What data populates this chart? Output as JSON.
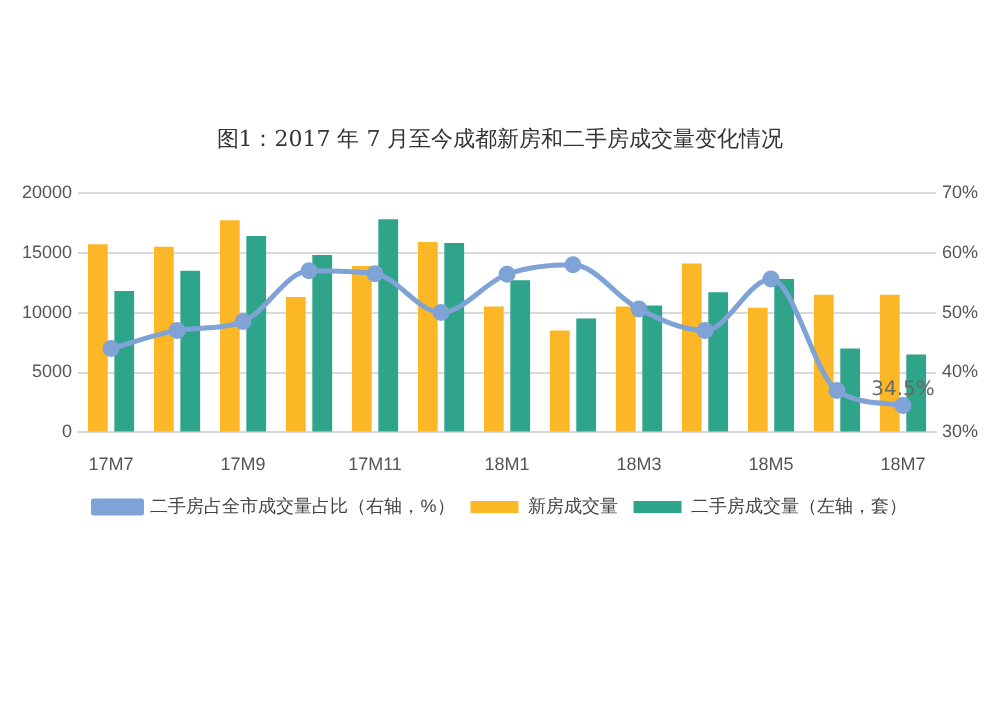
{
  "chart_data": {
    "type": "bar",
    "title": "图1：2017 年 7 月至今成都新房和二手房成交量变化情况",
    "categories": [
      "17M7",
      null,
      "17M9",
      null,
      "17M11",
      null,
      "18M1",
      null,
      "18M3",
      null,
      "18M5",
      null,
      "18M7"
    ],
    "series": [
      {
        "name": "新房成交量",
        "color": "#fbb726",
        "values": [
          15700,
          15500,
          17700,
          11300,
          13900,
          15900,
          10500,
          8500,
          10500,
          14100,
          10400,
          11500,
          11500
        ]
      },
      {
        "name": "二手房成交量（左轴，套）",
        "color": "#2ea58a",
        "values": [
          11800,
          13500,
          16400,
          14800,
          17800,
          15800,
          12700,
          9500,
          10600,
          11700,
          12800,
          7000,
          6500
        ]
      },
      {
        "name": "二手房占全市成交量占比（右轴，%）",
        "color": "#7fa3d6",
        "type": "line",
        "axis": "y2",
        "marker": "circle",
        "values": [
          44,
          47,
          48.5,
          57,
          56.5,
          50,
          56.4,
          58,
          50.6,
          47,
          55.6,
          37,
          34.5
        ],
        "value_labels": [
          null,
          null,
          null,
          null,
          null,
          null,
          null,
          null,
          null,
          null,
          null,
          null,
          "34.5%"
        ]
      }
    ],
    "ylim": [
      0,
      20000
    ],
    "yticks": [
      0,
      5000,
      10000,
      15000,
      20000
    ],
    "y2lim": [
      30,
      70
    ],
    "y2ticks": [
      {
        "value": 30,
        "label": "30%"
      },
      {
        "value": 40,
        "label": "40%"
      },
      {
        "value": 50,
        "label": "50%"
      },
      {
        "value": 60,
        "label": "60%"
      },
      {
        "value": 70,
        "label": "70%"
      }
    ],
    "grid": "y",
    "legend": "bottom"
  }
}
